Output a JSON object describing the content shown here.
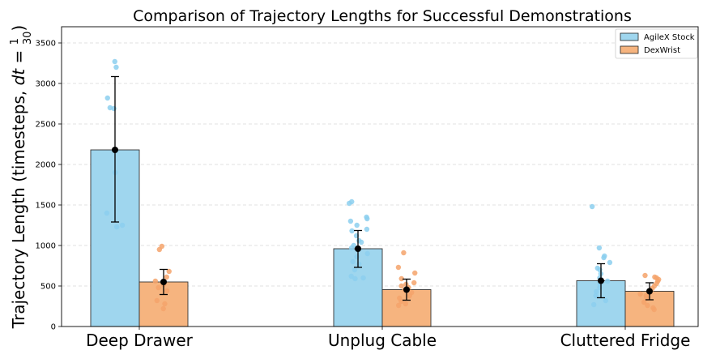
{
  "chart_data": {
    "type": "bar",
    "title": "Comparison of Trajectory Lengths for Successful Demonstrations",
    "ylabel_prefix": "Trajectory Length (timesteps, ",
    "ylabel_dt": "dt",
    "ylabel_eq": " = ",
    "ylabel_frac_num": "1",
    "ylabel_frac_den": "30",
    "ylabel_suffix": ")",
    "ylim": [
      0,
      3700
    ],
    "yticks": [
      0,
      500,
      1000,
      1500,
      2000,
      2500,
      3000,
      3500
    ],
    "grid": true,
    "legend_position": "top-right",
    "categories": [
      "Deep Drawer",
      "Unplug Cable",
      "Cluttered Fridge"
    ],
    "series": [
      {
        "name": "AgileX Stock",
        "color": "#9fd6ee",
        "point_color": "#8ccfef",
        "values": [
          2180,
          960,
          565
        ],
        "err_low": [
          1290,
          730,
          355
        ],
        "err_high": [
          3085,
          1185,
          775
        ],
        "points": [
          [
            3270,
            3200,
            2820,
            2700,
            2690,
            1900,
            1400,
            1250,
            1230
          ],
          [
            1540,
            1520,
            1350,
            1330,
            1300,
            1250,
            1200,
            1180,
            1120,
            1060,
            1040,
            1000,
            970,
            900,
            860,
            800,
            770,
            700,
            620,
            600,
            590
          ],
          [
            1480,
            970,
            870,
            850,
            790,
            720,
            700,
            650,
            600,
            560,
            520,
            480,
            430,
            380,
            320,
            270
          ]
        ]
      },
      {
        "name": "DexWrist",
        "color": "#f6b47f",
        "point_color": "#f5a36b",
        "values": [
          550,
          455,
          435
        ],
        "err_low": [
          395,
          325,
          330
        ],
        "err_high": [
          705,
          585,
          540
        ],
        "points": [
          [
            990,
            950,
            680,
            610,
            560,
            520,
            480,
            440,
            320,
            280,
            220
          ],
          [
            910,
            730,
            660,
            590,
            540,
            520,
            500,
            480,
            450,
            420,
            380,
            350,
            310,
            280,
            260
          ],
          [
            630,
            610,
            600,
            580,
            560,
            530,
            500,
            470,
            430,
            400,
            380,
            350,
            300,
            260,
            230,
            210
          ]
        ]
      }
    ]
  }
}
